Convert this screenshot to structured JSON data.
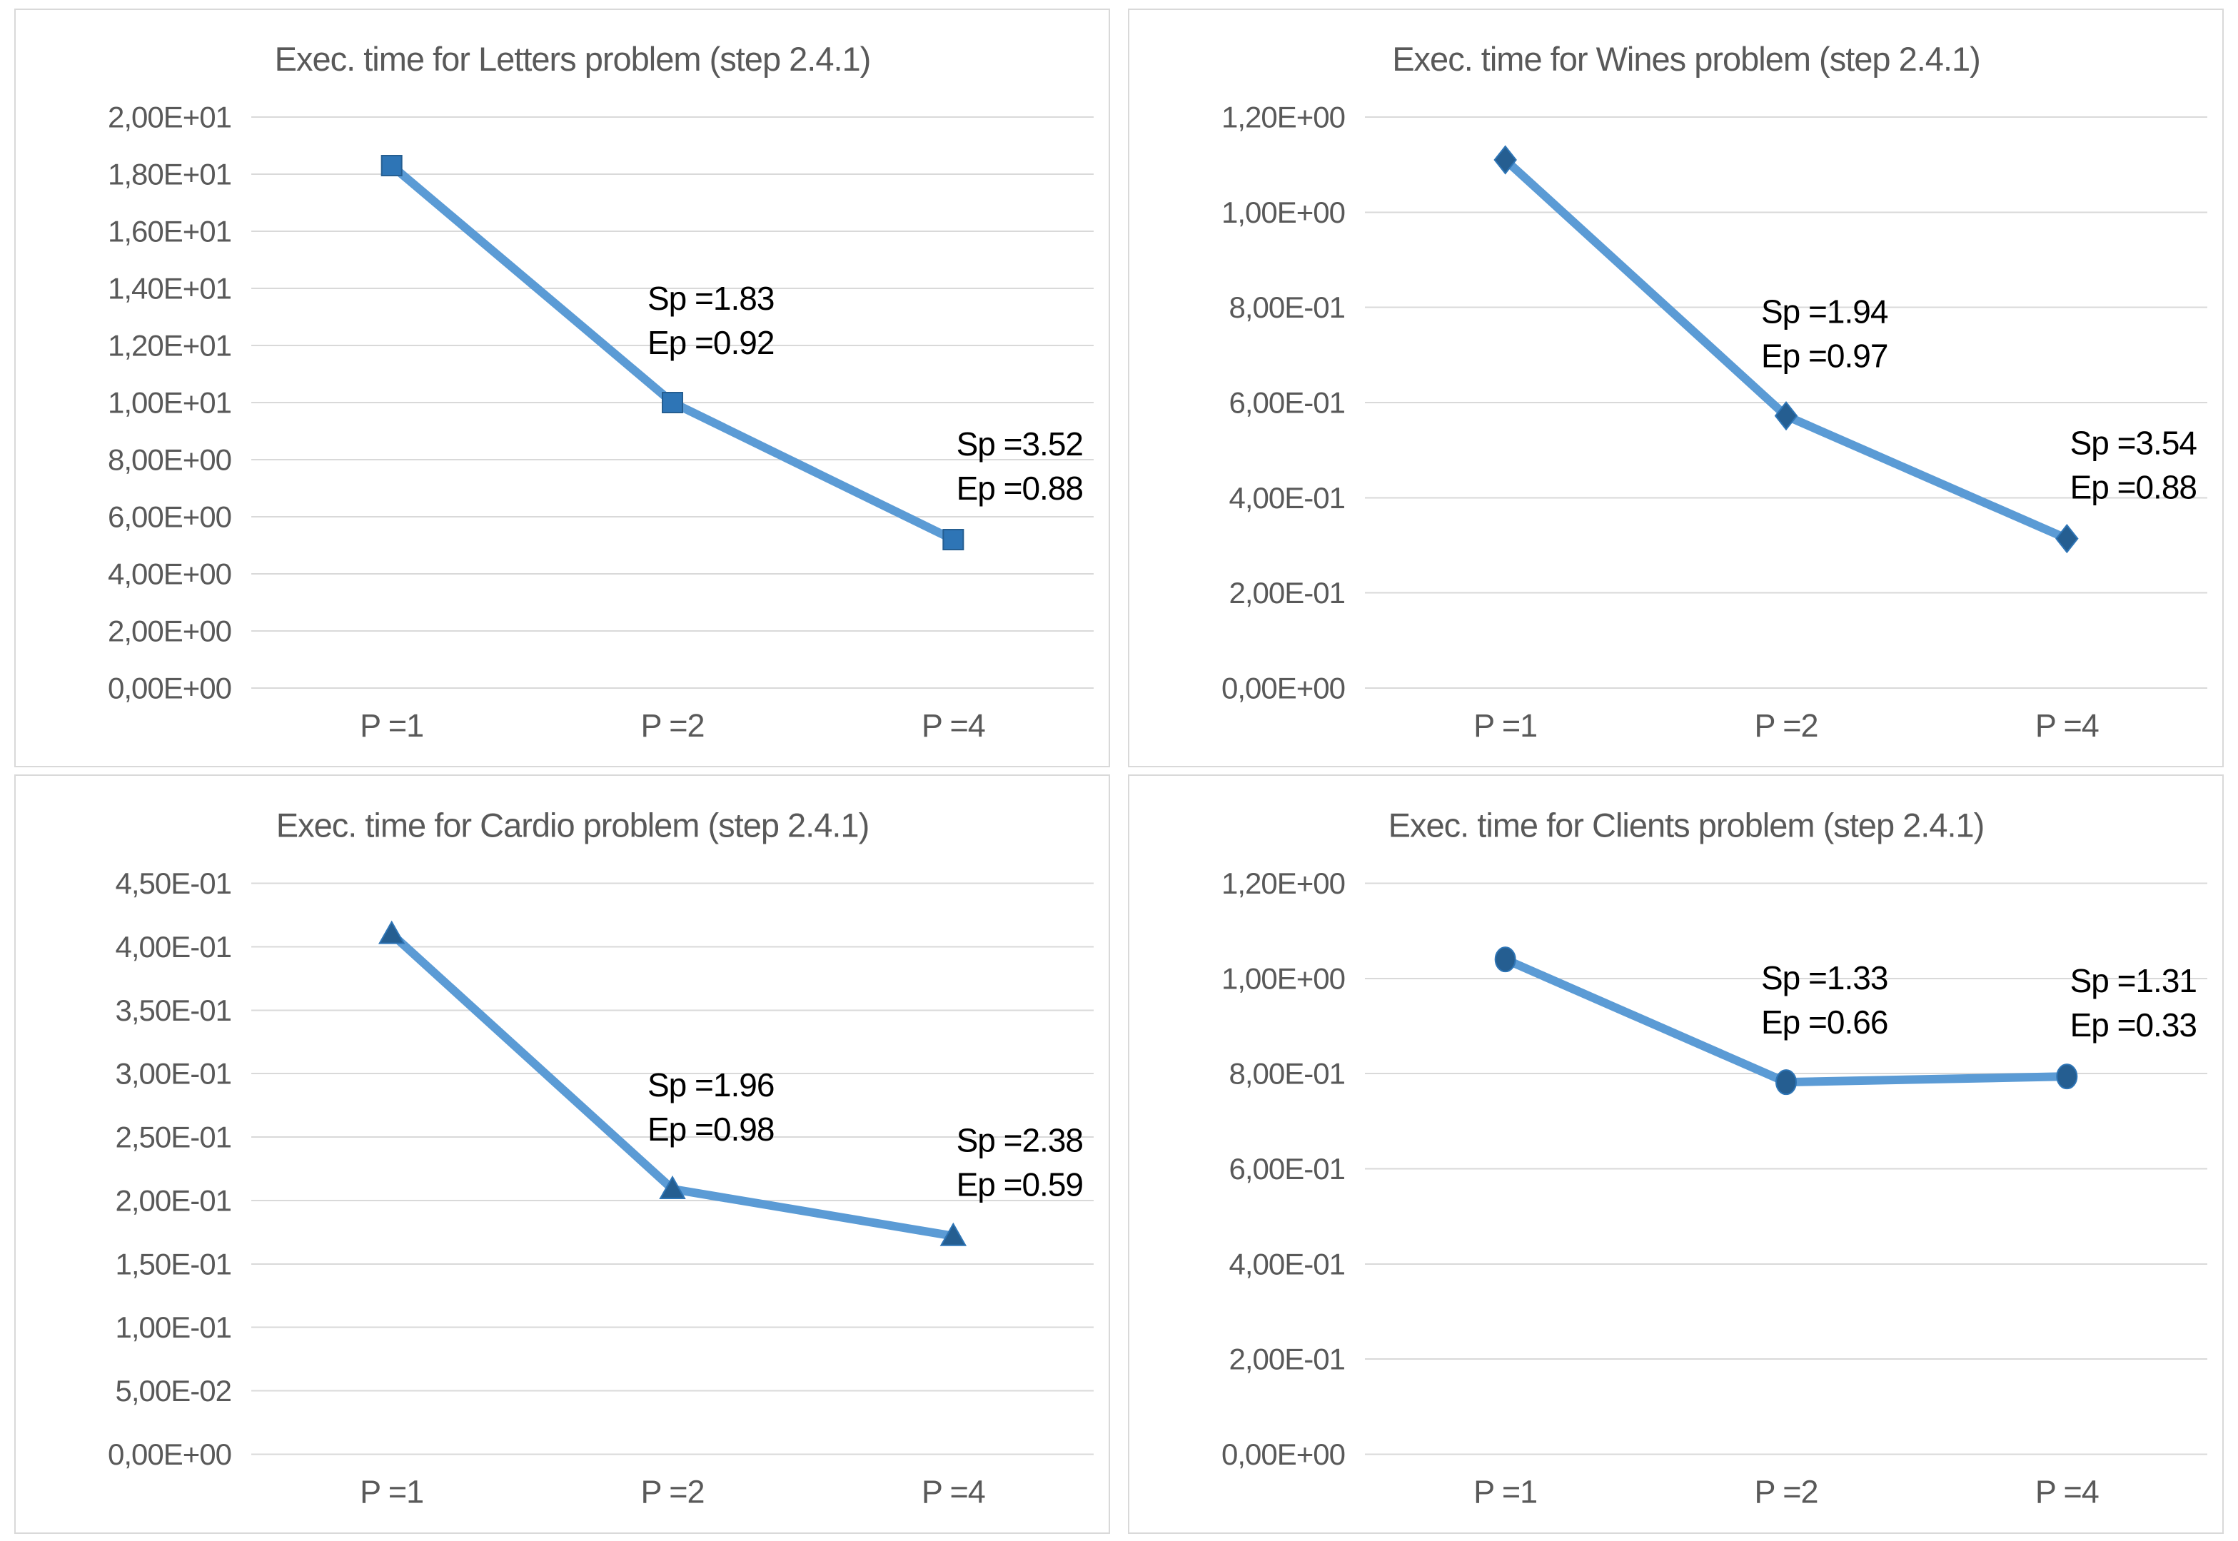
{
  "style": {
    "line_color": "#5B9BD5",
    "grid_color": "#D9D9D9",
    "panel_border_color": "#D9D9D9",
    "axis_text_color": "#595959",
    "title_color": "#595959",
    "annotation_color": "#000000",
    "background": "#FFFFFF"
  },
  "chart_data": [
    {
      "id": "letters",
      "type": "line",
      "title": "Exec. time for Letters problem (step 2.4.1)",
      "categories": [
        "P =1",
        "P =2",
        "P =4"
      ],
      "values": [
        18.3,
        10.0,
        5.2
      ],
      "ylim": [
        0,
        20
      ],
      "y_tick_labels": [
        "2,00E+01",
        "1,80E+01",
        "1,60E+01",
        "1,40E+01",
        "1,20E+01",
        "1,00E+01",
        "8,00E+00",
        "6,00E+00",
        "4,00E+00",
        "2,00E+00",
        "0,00E+00"
      ],
      "grid": true,
      "legend": "none",
      "marker": "square",
      "marker_color": "#2E75B6",
      "marker_edge_color": "#255E91",
      "annotations": [
        {
          "point_index": 1,
          "lines": [
            "Sp =1.83",
            "Ep =0.92"
          ],
          "align": "left"
        },
        {
          "point_index": 2,
          "lines": [
            "Sp =3.52",
            "Ep =0.88"
          ],
          "align": "right"
        }
      ]
    },
    {
      "id": "wines",
      "type": "line",
      "title": "Exec. time for Wines problem (step 2.4.1)",
      "categories": [
        "P =1",
        "P =2",
        "P =4"
      ],
      "values": [
        1.11,
        0.572,
        0.314
      ],
      "ylim": [
        0,
        1.2
      ],
      "y_tick_labels": [
        "1,20E+00",
        "1,00E+00",
        "8,00E-01",
        "6,00E-01",
        "4,00E-01",
        "2,00E-01",
        "0,00E+00"
      ],
      "grid": true,
      "legend": "none",
      "marker": "diamond",
      "marker_color": "#255E91",
      "marker_edge_color": "#2E75B6",
      "annotations": [
        {
          "point_index": 1,
          "lines": [
            "Sp =1.94",
            "Ep =0.97"
          ],
          "align": "left"
        },
        {
          "point_index": 2,
          "lines": [
            "Sp =3.54",
            "Ep =0.88"
          ],
          "align": "right"
        }
      ]
    },
    {
      "id": "cardio",
      "type": "line",
      "title": "Exec. time for Cardio problem (step 2.4.1)",
      "categories": [
        "P =1",
        "P =2",
        "P =4"
      ],
      "values": [
        0.41,
        0.209,
        0.172
      ],
      "ylim": [
        0,
        0.45
      ],
      "y_tick_labels": [
        "4,50E-01",
        "4,00E-01",
        "3,50E-01",
        "3,00E-01",
        "2,50E-01",
        "2,00E-01",
        "1,50E-01",
        "1,00E-01",
        "5,00E-02",
        "0,00E+00"
      ],
      "grid": true,
      "legend": "none",
      "marker": "triangle",
      "marker_color": "#255E91",
      "marker_edge_color": "#2E75B6",
      "annotations": [
        {
          "point_index": 1,
          "lines": [
            "Sp =1.96",
            "Ep =0.98"
          ],
          "align": "left"
        },
        {
          "point_index": 2,
          "lines": [
            "Sp =2.38",
            "Ep =0.59"
          ],
          "align": "right"
        }
      ]
    },
    {
      "id": "clients",
      "type": "line",
      "title": "Exec. time for Clients problem (step 2.4.1)",
      "categories": [
        "P =1",
        "P =2",
        "P =4"
      ],
      "values": [
        1.04,
        0.782,
        0.794
      ],
      "ylim": [
        0,
        1.2
      ],
      "y_tick_labels": [
        "1,20E+00",
        "1,00E+00",
        "8,00E-01",
        "6,00E-01",
        "4,00E-01",
        "2,00E-01",
        "0,00E+00"
      ],
      "grid": true,
      "legend": "none",
      "marker": "circle",
      "marker_color": "#255E91",
      "marker_edge_color": "#2E75B6",
      "annotations": [
        {
          "point_index": 1,
          "lines": [
            "Sp =1.33",
            "Ep =0.66"
          ],
          "align": "left"
        },
        {
          "point_index": 2,
          "lines": [
            "Sp =1.31",
            "Ep =0.33"
          ],
          "align": "right"
        }
      ]
    }
  ]
}
